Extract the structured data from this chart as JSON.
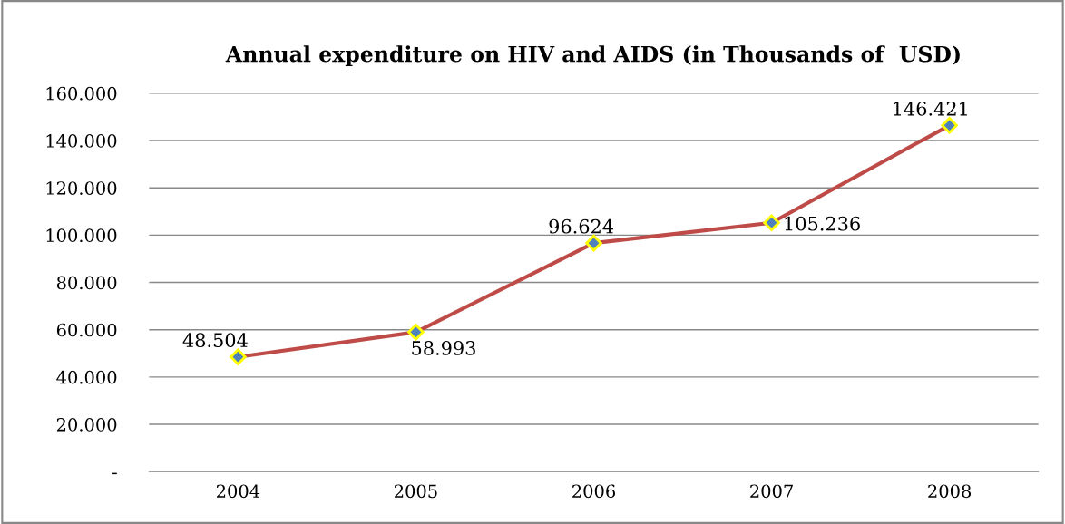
{
  "chart_data": {
    "type": "line",
    "title": "Annual expenditure on HIV and AIDS (in Thousands of  USD)",
    "categories": [
      "2004",
      "2005",
      "2006",
      "2007",
      "2008"
    ],
    "series": [
      {
        "color": "#be4b48",
        "values": [
          48504,
          58993,
          96624,
          105236,
          146421
        ],
        "value_labels": [
          "48.504",
          "58.993",
          "96.624",
          "105.236",
          "146.421"
        ]
      }
    ],
    "ylim": [
      0,
      160000
    ],
    "yticks": [
      {
        "value": 0,
        "label": "-"
      },
      {
        "value": 20000,
        "label": "20.000"
      },
      {
        "value": 40000,
        "label": "40.000"
      },
      {
        "value": 60000,
        "label": "60.000"
      },
      {
        "value": 80000,
        "label": "80.000"
      },
      {
        "value": 100000,
        "label": "100.000"
      },
      {
        "value": 120000,
        "label": "120.000"
      },
      {
        "value": 140000,
        "label": "140.000"
      },
      {
        "value": 160000,
        "label": "160.000"
      }
    ],
    "grid": "y",
    "marker": "diamond"
  }
}
